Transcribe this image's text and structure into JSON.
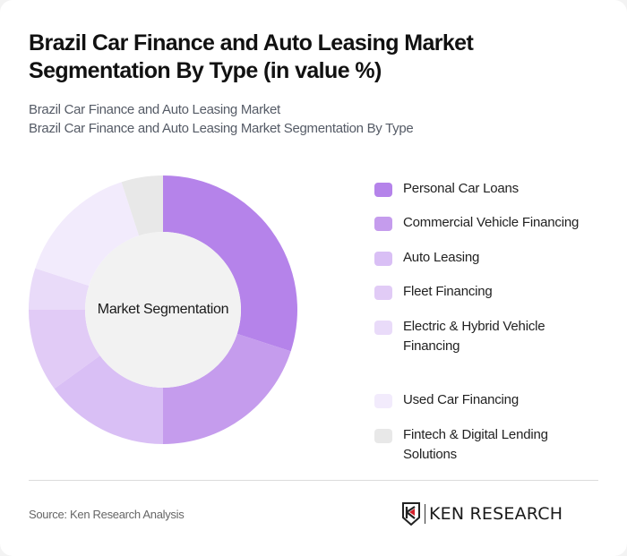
{
  "header": {
    "title": "Brazil Car Finance and Auto Leasing Market Segmentation By Type (in value %)",
    "subtitle_1": "Brazil Car Finance and Auto Leasing Market",
    "subtitle_2": "Brazil Car Finance and Auto Leasing Market Segmentation By Type"
  },
  "chart": {
    "center_label": "Market Segmentation"
  },
  "legend": [
    {
      "label": "Personal Car Loans",
      "color": "#b583ea"
    },
    {
      "label": "Commercial Vehicle Financing",
      "color": "#c59ced"
    },
    {
      "label": "Auto Leasing",
      "color": "#d9bff5"
    },
    {
      "label": "Fleet Financing",
      "color": "#e1cbf6"
    },
    {
      "label": "Electric & Hybrid Vehicle Financing",
      "color": "#e9dbf9"
    },
    {
      "label": "Used Car Financing",
      "color": "#f2ebfc"
    },
    {
      "label": "Fintech & Digital Lending Solutions",
      "color": "#e8e8e8"
    }
  ],
  "footer": {
    "source": "Source: Ken Research Analysis",
    "logo_text": "KEN RESEARCH"
  },
  "chart_data": {
    "type": "pie",
    "title": "Brazil Car Finance and Auto Leasing Market Segmentation By Type (in value %)",
    "center_label": "Market Segmentation",
    "categories": [
      "Personal Car Loans",
      "Commercial Vehicle Financing",
      "Auto Leasing",
      "Fleet Financing",
      "Electric & Hybrid Vehicle Financing",
      "Used Car Financing",
      "Fintech & Digital Lending Solutions"
    ],
    "values": [
      30,
      20,
      15,
      10,
      5,
      15,
      5
    ],
    "colors": [
      "#b583ea",
      "#c59ced",
      "#d9bff5",
      "#e1cbf6",
      "#e9dbf9",
      "#f2ebfc",
      "#e8e8e8"
    ],
    "donut": true,
    "legend_position": "right"
  }
}
